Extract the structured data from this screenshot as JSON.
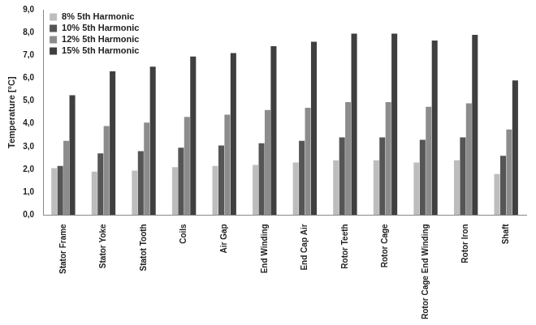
{
  "chart_data": {
    "type": "bar",
    "y_label": "Temperature [°C]",
    "categories": [
      "Stator Frame",
      "Stator Yoke",
      "Statot Tooth",
      "Coils",
      "Air Gap",
      "End Winding",
      "End Cap Air",
      "Rotor Teeth",
      "Rotor Cage",
      "Rotor Cage End Winding",
      "Rotor Iron",
      "Shaft"
    ],
    "series": [
      {
        "name": "8% 5th Harmonic",
        "color": "#bdbdbd",
        "values": [
          2.05,
          1.9,
          1.95,
          2.1,
          2.15,
          2.2,
          2.3,
          2.4,
          2.4,
          2.3,
          2.4,
          1.8
        ]
      },
      {
        "name": "10% 5th Harmonic",
        "color": "#555555",
        "values": [
          2.15,
          2.7,
          2.8,
          2.95,
          3.05,
          3.15,
          3.25,
          3.4,
          3.4,
          3.3,
          3.4,
          2.6
        ]
      },
      {
        "name": "12% 5th Harmonic",
        "color": "#8c8c8c",
        "values": [
          3.25,
          3.9,
          4.05,
          4.3,
          4.4,
          4.6,
          4.7,
          4.95,
          4.95,
          4.75,
          4.9,
          3.75
        ]
      },
      {
        "name": "15% 5th Harmonic",
        "color": "#3f3f3f",
        "values": [
          5.25,
          6.3,
          6.5,
          6.95,
          7.1,
          7.4,
          7.6,
          7.95,
          7.95,
          7.65,
          7.9,
          5.9
        ]
      }
    ],
    "ylim": [
      0,
      9
    ],
    "yticks": [
      {
        "value": 0,
        "label": "0,0"
      },
      {
        "value": 1,
        "label": "1,0"
      },
      {
        "value": 2,
        "label": "2,0"
      },
      {
        "value": 3,
        "label": "3,0"
      },
      {
        "value": 4,
        "label": "4,0"
      },
      {
        "value": 5,
        "label": "5,0"
      },
      {
        "value": 6,
        "label": "6,0"
      },
      {
        "value": 7,
        "label": "7,0"
      },
      {
        "value": 8,
        "label": "8,0"
      },
      {
        "value": 9,
        "label": "9,0"
      }
    ],
    "grid": false,
    "legend": "top-left"
  }
}
